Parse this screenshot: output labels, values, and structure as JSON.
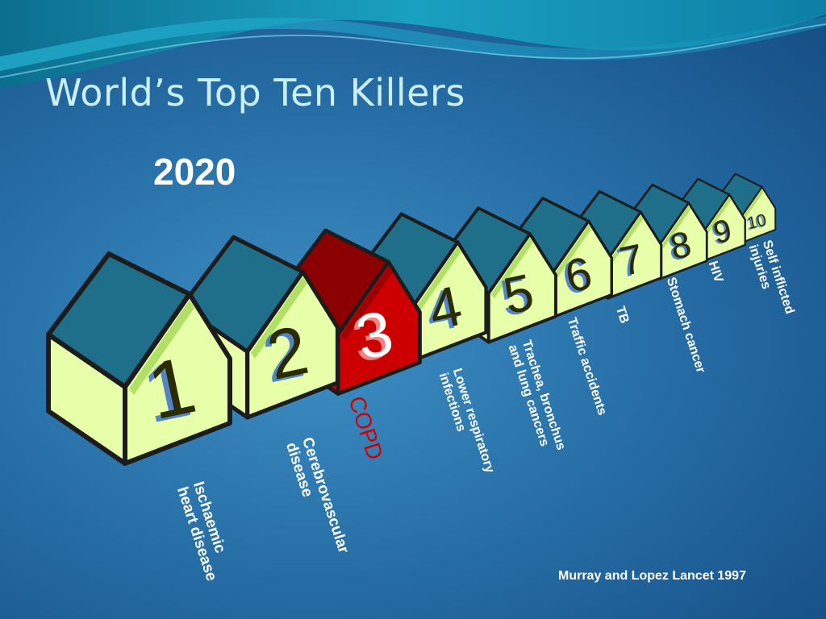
{
  "slide": {
    "title": "World’s Top Ten Killers",
    "year": "2020",
    "citation": "Murray and Lopez Lancet 1997"
  },
  "colors": {
    "house_wall": "#e6ffa8",
    "house_roof": "#1f6f8a",
    "house_outline": "#1c1c1c",
    "highlight_wall": "#cc0000",
    "highlight_roof": "#8b0000",
    "digit": "#2b2b00",
    "digit_shadow": "#3a6fd0",
    "label": "#ffffff",
    "highlight_label": "#d40000"
  },
  "rankings": [
    {
      "rank": "1",
      "lines": [
        "Ischaemic",
        "heart disease"
      ]
    },
    {
      "rank": "2",
      "lines": [
        "Cerebrovascular",
        "disease"
      ]
    },
    {
      "rank": "3",
      "lines": [
        "COPD"
      ],
      "highlight": true
    },
    {
      "rank": "4",
      "lines": [
        "Lower respiratory",
        "infections"
      ]
    },
    {
      "rank": "5",
      "lines": [
        "Trachea, bronchus",
        "and lung cancers"
      ]
    },
    {
      "rank": "6",
      "lines": [
        "Traffic accidents"
      ]
    },
    {
      "rank": "7",
      "lines": [
        "TB"
      ]
    },
    {
      "rank": "8",
      "lines": [
        "Stomach cancer"
      ]
    },
    {
      "rank": "9",
      "lines": [
        "HIV"
      ]
    },
    {
      "rank": "10",
      "lines": [
        "Self inflicted",
        "injuries"
      ]
    }
  ]
}
